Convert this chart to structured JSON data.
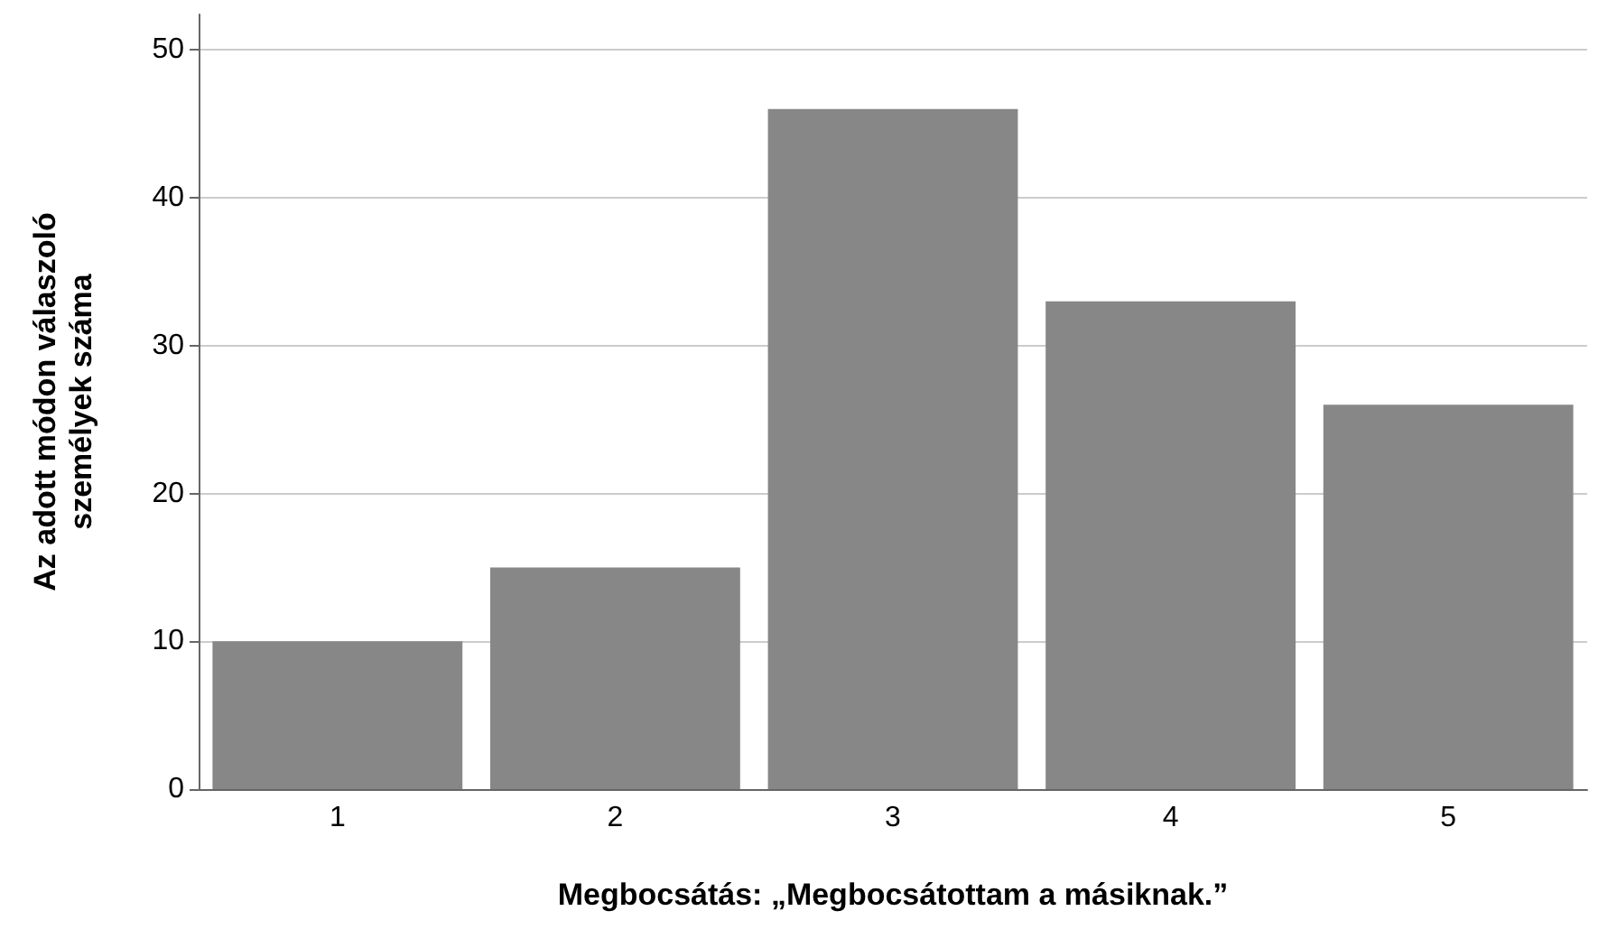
{
  "chart_data": {
    "type": "bar",
    "categories": [
      "1",
      "2",
      "3",
      "4",
      "5"
    ],
    "values": [
      10,
      15,
      46,
      33,
      26
    ],
    "color": "#878787",
    "xlabel": "Megbocsátás: „Megbocsátottam a másiknak.”",
    "ylabel": "Az adott módon válaszoló\nszemélyek száma",
    "ylim": [
      0,
      52.4
    ],
    "yticks": [
      0,
      10,
      20,
      30,
      40,
      50
    ],
    "grid": "y"
  }
}
